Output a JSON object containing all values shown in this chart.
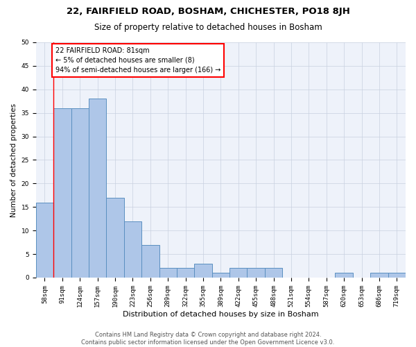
{
  "title": "22, FAIRFIELD ROAD, BOSHAM, CHICHESTER, PO18 8JH",
  "subtitle": "Size of property relative to detached houses in Bosham",
  "xlabel": "Distribution of detached houses by size in Bosham",
  "ylabel": "Number of detached properties",
  "categories": [
    "58sqm",
    "91sqm",
    "124sqm",
    "157sqm",
    "190sqm",
    "223sqm",
    "256sqm",
    "289sqm",
    "322sqm",
    "355sqm",
    "389sqm",
    "422sqm",
    "455sqm",
    "488sqm",
    "521sqm",
    "554sqm",
    "587sqm",
    "620sqm",
    "653sqm",
    "686sqm",
    "719sqm"
  ],
  "values": [
    16,
    36,
    36,
    38,
    17,
    12,
    7,
    2,
    2,
    3,
    1,
    2,
    2,
    2,
    0,
    0,
    0,
    1,
    0,
    1,
    1
  ],
  "bar_color": "#aec6e8",
  "bar_edge_color": "#5a8fc0",
  "annotation_text": "22 FAIRFIELD ROAD: 81sqm\n← 5% of detached houses are smaller (8)\n94% of semi-detached houses are larger (166) →",
  "annotation_box_color": "white",
  "annotation_box_edge_color": "red",
  "red_line_x": 0.5,
  "ylim": [
    0,
    50
  ],
  "yticks": [
    0,
    5,
    10,
    15,
    20,
    25,
    30,
    35,
    40,
    45,
    50
  ],
  "grid_color": "#c8d0e0",
  "bg_color": "#eef2fa",
  "footer_line1": "Contains HM Land Registry data © Crown copyright and database right 2024.",
  "footer_line2": "Contains public sector information licensed under the Open Government Licence v3.0.",
  "title_fontsize": 9.5,
  "subtitle_fontsize": 8.5,
  "xlabel_fontsize": 8,
  "ylabel_fontsize": 7.5,
  "tick_fontsize": 6.5,
  "annotation_fontsize": 7,
  "footer_fontsize": 6
}
